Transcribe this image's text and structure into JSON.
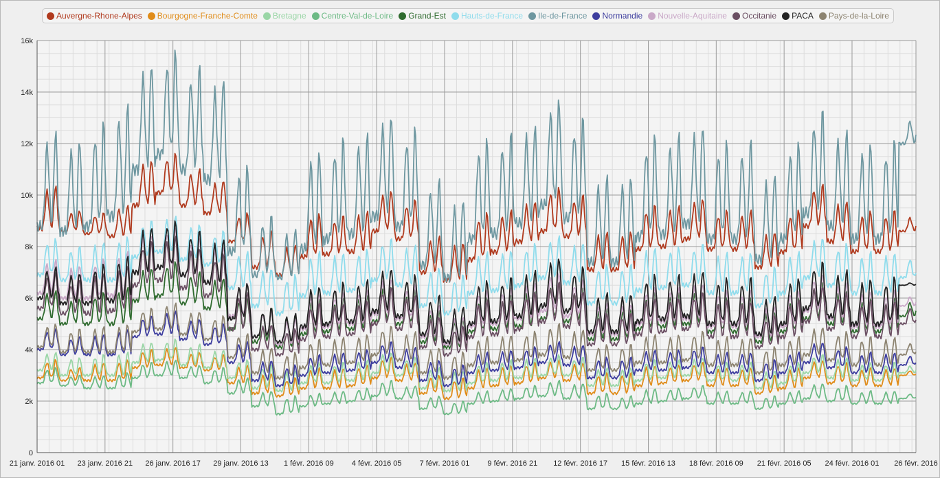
{
  "chart_data": {
    "type": "line",
    "title": "",
    "xlabel": "",
    "ylabel": "",
    "ylim": [
      0,
      16000
    ],
    "grid": true,
    "legend_position": "top",
    "y_ticks": [
      {
        "value": 0,
        "label": "0"
      },
      {
        "value": 2000,
        "label": "2k"
      },
      {
        "value": 4000,
        "label": "4k"
      },
      {
        "value": 6000,
        "label": "6k"
      },
      {
        "value": 8000,
        "label": "8k"
      },
      {
        "value": 10000,
        "label": "10k"
      },
      {
        "value": 12000,
        "label": "12k"
      },
      {
        "value": 14000,
        "label": "14k"
      },
      {
        "value": 16000,
        "label": "16k"
      }
    ],
    "x_start": "2016-01-21 01:00",
    "x_end": "2016-02-26 17:00",
    "x_ticks": [
      "21 janv. 2016 01",
      "23 janv. 2016 21",
      "26 janv. 2016 17",
      "29 janv. 2016 13",
      "1 févr. 2016 09",
      "4 févr. 2016 05",
      "7 févr. 2016 01",
      "9 févr. 2016 21",
      "12 févr. 2016 17",
      "15 févr. 2016 13",
      "18 févr. 2016 09",
      "21 févr. 2016 05",
      "24 févr. 2016 01",
      "26 févr. 2016"
    ],
    "daily_peaks_note_dates": [
      "2016-01-21",
      "2016-01-22",
      "2016-01-23",
      "2016-01-24",
      "2016-01-25",
      "2016-01-26",
      "2016-01-27",
      "2016-01-28",
      "2016-01-29",
      "2016-01-30",
      "2016-01-31",
      "2016-02-01",
      "2016-02-02",
      "2016-02-03",
      "2016-02-04",
      "2016-02-05",
      "2016-02-06",
      "2016-02-07",
      "2016-02-08",
      "2016-02-09",
      "2016-02-10",
      "2016-02-11",
      "2016-02-12",
      "2016-02-13",
      "2016-02-14",
      "2016-02-15",
      "2016-02-16",
      "2016-02-17",
      "2016-02-18",
      "2016-02-19",
      "2016-02-20",
      "2016-02-21",
      "2016-02-22",
      "2016-02-23",
      "2016-02-24",
      "2016-02-25",
      "2016-02-26"
    ],
    "series": [
      {
        "name": "Auvergne-Rhone-Alpes",
        "color": "#b03a1e",
        "daily_peak": [
          10400,
          9400,
          9300,
          9600,
          11400,
          11600,
          11000,
          10600,
          9300,
          8600,
          8100,
          9300,
          9200,
          9400,
          10200,
          9800,
          8400,
          8200,
          9300,
          9400,
          9800,
          10300,
          10000,
          8600,
          8600,
          9600,
          9600,
          9900,
          9400,
          9400,
          8600,
          9400,
          10400,
          9800,
          9400,
          9400,
          9200
        ],
        "daily_low": [
          8700,
          8600,
          8500,
          8400,
          9600,
          10100,
          9600,
          9300,
          8200,
          7200,
          6900,
          7600,
          7700,
          7800,
          8600,
          8300,
          7000,
          6700,
          7500,
          7800,
          8200,
          8600,
          8400,
          7100,
          7100,
          7900,
          8000,
          8300,
          7900,
          7900,
          7200,
          7800,
          8800,
          8200,
          7800,
          7800,
          8600
        ]
      },
      {
        "name": "Bourgogne-Franche-Comte",
        "color": "#e08c1a",
        "daily_peak": [
          3600,
          3300,
          3500,
          3600,
          4000,
          4100,
          3900,
          3800,
          3400,
          3100,
          2900,
          3300,
          3300,
          3400,
          3700,
          3500,
          3000,
          2900,
          3300,
          3400,
          3500,
          3600,
          3500,
          3100,
          3100,
          3400,
          3400,
          3500,
          3300,
          3300,
          3000,
          3300,
          3600,
          3500,
          3300,
          3300,
          3200
        ],
        "daily_low": [
          2900,
          2800,
          2800,
          2800,
          3300,
          3400,
          3300,
          3200,
          2700,
          2300,
          2200,
          2500,
          2500,
          2600,
          2900,
          2800,
          2300,
          2100,
          2500,
          2600,
          2700,
          2900,
          2800,
          2300,
          2300,
          2600,
          2700,
          2800,
          2600,
          2600,
          2300,
          2500,
          2900,
          2700,
          2600,
          2600,
          3000
        ]
      },
      {
        "name": "Bretagne",
        "color": "#9ad6a6",
        "daily_peak": [
          3900,
          3700,
          3800,
          3900,
          4300,
          4400,
          4200,
          4000,
          3600,
          3400,
          3200,
          3500,
          3500,
          3600,
          3900,
          3700,
          3300,
          3200,
          3500,
          3600,
          3700,
          3800,
          3700,
          3300,
          3300,
          3600,
          3600,
          3700,
          3500,
          3500,
          3200,
          3500,
          3800,
          3700,
          3500,
          3500,
          3400
        ],
        "daily_low": [
          3200,
          3000,
          3000,
          3000,
          3500,
          3600,
          3400,
          3300,
          2900,
          2500,
          2400,
          2700,
          2700,
          2800,
          3100,
          3000,
          2500,
          2400,
          2700,
          2800,
          2900,
          3000,
          3000,
          2600,
          2600,
          2800,
          2900,
          3000,
          2800,
          2800,
          2500,
          2700,
          3100,
          2900,
          2800,
          2800,
          3100
        ]
      },
      {
        "name": "Centre-Val-de-Loire",
        "color": "#6dba85",
        "daily_peak": [
          3300,
          3000,
          3000,
          3100,
          3500,
          3600,
          3400,
          3300,
          2900,
          2400,
          2200,
          2300,
          2400,
          2500,
          2800,
          2600,
          2200,
          2000,
          2400,
          2500,
          2600,
          2800,
          2700,
          2300,
          2200,
          2500,
          2500,
          2600,
          2400,
          2400,
          2200,
          2400,
          2700,
          2600,
          2400,
          2400,
          2300
        ],
        "daily_low": [
          2700,
          2600,
          2500,
          2500,
          2900,
          3000,
          2900,
          2700,
          2300,
          1800,
          1500,
          1800,
          1900,
          2000,
          2200,
          2100,
          1700,
          1500,
          1900,
          2000,
          2100,
          2200,
          2100,
          1700,
          1700,
          1900,
          2000,
          2100,
          1900,
          1900,
          1700,
          1900,
          2100,
          2000,
          1900,
          1900,
          2100
        ]
      },
      {
        "name": "Grand-Est",
        "color": "#2f6b2f",
        "daily_peak": [
          6300,
          6000,
          6200,
          6400,
          7200,
          7400,
          7000,
          6800,
          6000,
          5600,
          5300,
          6000,
          6000,
          6100,
          6500,
          6300,
          5500,
          5200,
          6000,
          6100,
          6300,
          6600,
          6400,
          5600,
          5600,
          6200,
          6200,
          6300,
          6000,
          6000,
          5500,
          6000,
          6600,
          6300,
          6000,
          6000,
          5900
        ],
        "daily_low": [
          5200,
          5000,
          5000,
          5000,
          5900,
          6100,
          5800,
          5600,
          4800,
          4300,
          4100,
          4600,
          4700,
          4800,
          5100,
          5000,
          4300,
          4100,
          4700,
          4800,
          4900,
          5200,
          5100,
          4400,
          4400,
          4800,
          4900,
          5000,
          4700,
          4700,
          4300,
          4700,
          5200,
          5000,
          4700,
          4700,
          5300
        ]
      },
      {
        "name": "Hauts-de-France",
        "color": "#8fdcec",
        "daily_peak": [
          8300,
          8000,
          8200,
          8400,
          9000,
          9200,
          8900,
          8600,
          7800,
          7200,
          6900,
          7800,
          7800,
          7900,
          8300,
          8100,
          7200,
          6900,
          7800,
          7900,
          8100,
          8400,
          8200,
          7300,
          7300,
          8000,
          8000,
          8100,
          7800,
          7800,
          7200,
          7800,
          8400,
          8100,
          7800,
          7800,
          7600
        ],
        "daily_low": [
          6900,
          6700,
          6700,
          6700,
          7600,
          7800,
          7500,
          7300,
          6400,
          5700,
          5400,
          6100,
          6200,
          6300,
          6700,
          6500,
          5700,
          5400,
          6200,
          6300,
          6500,
          6800,
          6600,
          5800,
          5800,
          6300,
          6400,
          6500,
          6200,
          6200,
          5700,
          6200,
          6800,
          6500,
          6200,
          6200,
          6800
        ]
      },
      {
        "name": "Ile-de-France",
        "color": "#6e97a0",
        "daily_peak": [
          12500,
          12200,
          12800,
          13500,
          15200,
          15600,
          15000,
          14600,
          11200,
          9200,
          8700,
          11800,
          12200,
          12400,
          13200,
          12600,
          10600,
          9900,
          12200,
          12400,
          12800,
          13800,
          13000,
          10800,
          10800,
          12300,
          12400,
          12800,
          12100,
          12100,
          10900,
          12100,
          13300,
          12600,
          12100,
          12100,
          13000
        ],
        "daily_low": [
          8800,
          8600,
          8800,
          9200,
          11000,
          11600,
          11000,
          10600,
          7800,
          6900,
          6800,
          7900,
          8300,
          8500,
          9200,
          8800,
          7300,
          6800,
          8300,
          8500,
          8900,
          9600,
          9100,
          7400,
          7400,
          8400,
          8500,
          8900,
          8300,
          8300,
          7500,
          8300,
          9300,
          8800,
          8300,
          8300,
          12000
        ]
      },
      {
        "name": "Normandie",
        "color": "#3d3d9e",
        "daily_peak": [
          4800,
          4500,
          4600,
          4800,
          5300,
          5500,
          5200,
          5000,
          4300,
          3600,
          3400,
          3800,
          3900,
          4000,
          4300,
          4100,
          3600,
          3400,
          3900,
          4000,
          4100,
          4300,
          4200,
          3700,
          3700,
          4000,
          4000,
          4100,
          3900,
          3900,
          3600,
          3900,
          4300,
          4100,
          3900,
          3900,
          3800
        ],
        "daily_low": [
          4000,
          3800,
          3800,
          3800,
          4500,
          4600,
          4400,
          4200,
          3500,
          2800,
          2600,
          3000,
          3100,
          3200,
          3500,
          3300,
          2800,
          2600,
          3100,
          3200,
          3300,
          3500,
          3400,
          2900,
          2900,
          3200,
          3200,
          3300,
          3100,
          3100,
          2800,
          3100,
          3500,
          3300,
          3100,
          3100,
          3400
        ]
      },
      {
        "name": "Nouvelle-Aquitaine",
        "color": "#c9a8c7",
        "daily_peak": [
          7500,
          7300,
          7500,
          7800,
          8500,
          8700,
          8300,
          8000,
          6600,
          5500,
          5200,
          6200,
          6200,
          6300,
          6800,
          6500,
          5700,
          5300,
          6300,
          6400,
          6600,
          7000,
          6700,
          5800,
          5800,
          6400,
          6400,
          6600,
          6300,
          6300,
          5700,
          6300,
          6900,
          6600,
          6300,
          6300,
          6100
        ],
        "daily_low": [
          6200,
          6000,
          6000,
          6100,
          7000,
          7200,
          6900,
          6600,
          5300,
          4500,
          4200,
          4800,
          4900,
          5000,
          5400,
          5200,
          4500,
          4200,
          4900,
          5000,
          5200,
          5500,
          5300,
          4600,
          4600,
          5000,
          5100,
          5200,
          4900,
          4900,
          4500,
          4900,
          5500,
          5200,
          4900,
          4900,
          5700
        ]
      },
      {
        "name": "Occitanie",
        "color": "#6b4f63",
        "daily_peak": [
          7000,
          6700,
          7000,
          7300,
          8200,
          8400,
          8000,
          7700,
          6200,
          5000,
          4800,
          5800,
          5800,
          5900,
          6400,
          6100,
          5300,
          4900,
          5900,
          6000,
          6200,
          6600,
          6300,
          5400,
          5400,
          6000,
          6000,
          6200,
          5900,
          5900,
          5300,
          5900,
          6500,
          6200,
          5900,
          5900,
          5700
        ],
        "daily_low": [
          5600,
          5400,
          5400,
          5500,
          6500,
          6700,
          6400,
          6100,
          4800,
          4000,
          3800,
          4400,
          4500,
          4600,
          5000,
          4800,
          4100,
          3800,
          4500,
          4600,
          4800,
          5100,
          4900,
          4200,
          4200,
          4600,
          4700,
          4800,
          4500,
          4500,
          4100,
          4500,
          5100,
          4800,
          4500,
          4500,
          5000
        ]
      },
      {
        "name": "PACA",
        "color": "#222222",
        "daily_peak": [
          7200,
          7000,
          7300,
          7600,
          8800,
          9000,
          8600,
          8300,
          6600,
          5600,
          5400,
          6500,
          6600,
          6700,
          7200,
          6900,
          6100,
          5700,
          6700,
          6800,
          7100,
          7600,
          7200,
          6200,
          6200,
          6900,
          6900,
          7100,
          6800,
          6800,
          6100,
          6800,
          7400,
          7100,
          6800,
          6800,
          6600
        ],
        "daily_low": [
          6000,
          5800,
          5800,
          5900,
          7000,
          7200,
          6900,
          6600,
          5200,
          4500,
          4300,
          4900,
          5000,
          5100,
          5500,
          5300,
          4600,
          4300,
          5000,
          5100,
          5300,
          5700,
          5500,
          4700,
          4700,
          5100,
          5200,
          5300,
          5000,
          5000,
          4600,
          5000,
          5600,
          5300,
          5000,
          5000,
          6500
        ]
      },
      {
        "name": "Pays-de-la-Loire",
        "color": "#8c8370",
        "daily_peak": [
          5000,
          4800,
          4900,
          5000,
          5600,
          5800,
          5500,
          5300,
          4600,
          4100,
          3900,
          4400,
          4500,
          4600,
          4900,
          4700,
          4100,
          3900,
          4500,
          4600,
          4700,
          5000,
          4800,
          4200,
          4200,
          4600,
          4600,
          4700,
          4500,
          4500,
          4100,
          4500,
          4900,
          4700,
          4500,
          4500,
          4300
        ],
        "daily_low": [
          4100,
          3900,
          3900,
          3900,
          4700,
          4800,
          4600,
          4400,
          3700,
          3100,
          2900,
          3300,
          3400,
          3500,
          3800,
          3600,
          3100,
          2900,
          3400,
          3500,
          3600,
          3800,
          3700,
          3200,
          3200,
          3500,
          3500,
          3600,
          3400,
          3400,
          3100,
          3400,
          3800,
          3600,
          3400,
          3400,
          3800
        ]
      }
    ]
  }
}
